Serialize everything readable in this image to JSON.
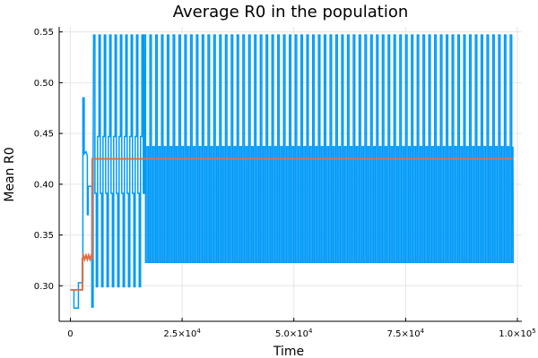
{
  "chart_data": {
    "type": "line",
    "title": "Average R0 in the population",
    "xlabel": "Time",
    "ylabel": "Mean R0",
    "xlim": [
      -2500,
      101000
    ],
    "ylim": [
      0.265,
      0.555
    ],
    "grid": true,
    "legend": "none",
    "x_ticks": [
      {
        "value": 0,
        "mantissa": "0",
        "exp": ""
      },
      {
        "value": 25000,
        "mantissa": "2.5×10",
        "exp": "4"
      },
      {
        "value": 50000,
        "mantissa": "5.0×10",
        "exp": "4"
      },
      {
        "value": 75000,
        "mantissa": "7.5×10",
        "exp": "4"
      },
      {
        "value": 100000,
        "mantissa": "1.0×10",
        "exp": "5"
      }
    ],
    "y_ticks": [
      {
        "value": 0.3,
        "label": "0.30"
      },
      {
        "value": 0.35,
        "label": "0.35"
      },
      {
        "value": 0.4,
        "label": "0.40"
      },
      {
        "value": 0.45,
        "label": "0.45"
      },
      {
        "value": 0.5,
        "label": "0.50"
      },
      {
        "value": 0.55,
        "label": "0.55"
      }
    ],
    "series": [
      {
        "color": "#009af9",
        "stroke_width": 1.5,
        "early_points": [
          [
            0,
            0.296
          ],
          [
            800,
            0.296
          ],
          [
            800,
            0.278
          ],
          [
            1800,
            0.278
          ],
          [
            1800,
            0.303
          ],
          [
            2800,
            0.303
          ],
          [
            2800,
            0.485
          ],
          [
            3100,
            0.485
          ],
          [
            3100,
            0.43
          ],
          [
            3500,
            0.432
          ],
          [
            3800,
            0.428
          ],
          [
            3800,
            0.37
          ],
          [
            4000,
            0.37
          ],
          [
            4000,
            0.398
          ],
          [
            4800,
            0.398
          ],
          [
            4800,
            0.279
          ],
          [
            5100,
            0.279
          ],
          [
            5100,
            0.425
          ]
        ],
        "phase1": {
          "x_start": 5200,
          "x_end": 16200,
          "period": 600,
          "levels": [
            0.337,
            0.391,
            0.299,
            0.447
          ],
          "spike": 0.547,
          "spike_every": 2
        },
        "phase2": {
          "x_start": 16500,
          "x_end": 99000,
          "period": 650,
          "high": 0.437,
          "low": 0.323,
          "spike": 0.547,
          "spike_every": 2
        }
      },
      {
        "color": "#e26f46",
        "stroke_width": 2,
        "points": [
          [
            0,
            0.296
          ],
          [
            2700,
            0.296
          ],
          [
            2700,
            0.326
          ],
          [
            2900,
            0.33
          ],
          [
            3200,
            0.326
          ],
          [
            3500,
            0.33
          ],
          [
            3800,
            0.326
          ],
          [
            4100,
            0.33
          ],
          [
            4400,
            0.326
          ],
          [
            4700,
            0.33
          ],
          [
            4900,
            0.326
          ],
          [
            4900,
            0.425
          ],
          [
            99000,
            0.425
          ]
        ]
      }
    ]
  }
}
